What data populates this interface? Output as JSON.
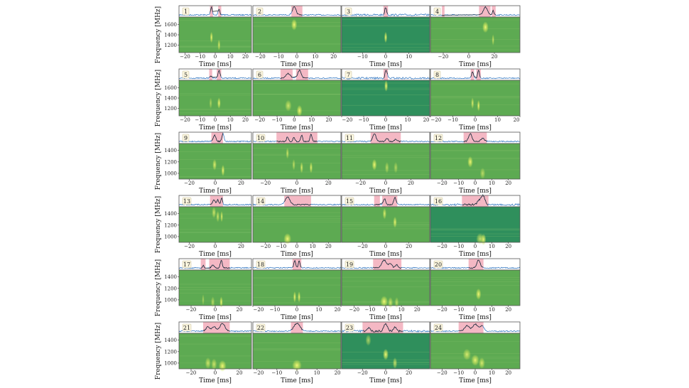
{
  "chart_data": {
    "type": "heatmap",
    "layout": {
      "rows": 6,
      "cols": 4
    },
    "xlabel": "Time [ms]",
    "ylabel": "Frequency [MHz]",
    "colors": {
      "shade": "#f4b8c4",
      "profile_line": "#3a7cc4",
      "burst_profile": "#222222",
      "spectrum_bg": "#5daa52",
      "spectrum_bg_dark": "#2f8f5c",
      "burst": "#d9ea5e"
    },
    "row_yticks": [
      [
        1200,
        1400,
        1600
      ],
      [
        1200,
        1400,
        1600
      ],
      [
        1000,
        1200,
        1400
      ],
      [
        1000,
        1200,
        1400
      ],
      [
        1000,
        1200,
        1400
      ],
      [
        1000,
        1200,
        1400
      ]
    ],
    "row_ylim": [
      [
        1050,
        1750
      ],
      [
        1050,
        1750
      ],
      [
        900,
        1520
      ],
      [
        900,
        1520
      ],
      [
        900,
        1520
      ],
      [
        900,
        1520
      ]
    ],
    "panels": [
      {
        "label": "1",
        "xlim": [
          -24,
          24
        ],
        "xticks": [
          -20,
          -10,
          0,
          10,
          20
        ],
        "shade": [
          [
            -3.5,
            -1.5
          ],
          [
            2,
            4
          ]
        ],
        "bursts": [
          [
            -2.5,
            1,
            0.6,
            1350
          ],
          [
            2.5,
            0.7,
            0.6,
            1200
          ]
        ],
        "dark": false
      },
      {
        "label": "2",
        "xlim": [
          -24,
          24
        ],
        "xticks": [
          -20,
          -10,
          0,
          10,
          20
        ],
        "shade": [
          [
            -3,
            3
          ]
        ],
        "bursts": [
          [
            -1.5,
            1,
            1,
            1600
          ]
        ],
        "dark": false
      },
      {
        "label": "3",
        "xlim": [
          -19,
          19
        ],
        "xticks": [
          -10,
          0,
          10
        ],
        "shade": [
          [
            -1,
            1
          ]
        ],
        "bursts": [
          [
            0,
            1,
            0.4,
            1350
          ]
        ],
        "dark": true
      },
      {
        "label": "4",
        "xlim": [
          -30,
          40
        ],
        "xticks": [
          -20,
          0,
          20
        ],
        "shade": [
          [
            -21,
            -19
          ],
          [
            8,
            17
          ],
          [
            18,
            21
          ]
        ],
        "bursts": [
          [
            13,
            1,
            1.5,
            1550
          ],
          [
            19,
            0.6,
            0.6,
            1300
          ]
        ],
        "dark": false
      },
      {
        "label": "5",
        "xlim": [
          -24,
          24
        ],
        "xticks": [
          -20,
          -10,
          0,
          10,
          20
        ],
        "shade": [
          [
            -4,
            -2
          ],
          [
            1,
            4
          ]
        ],
        "bursts": [
          [
            -3,
            0.3,
            0.6,
            1300
          ],
          [
            2.5,
            1,
            0.7,
            1300
          ]
        ],
        "dark": false
      },
      {
        "label": "6",
        "xlim": [
          -24,
          27
        ],
        "xticks": [
          -20,
          -10,
          0,
          10,
          20
        ],
        "shade": [
          [
            -8,
            -1
          ],
          [
            1,
            8
          ]
        ],
        "bursts": [
          [
            -3.5,
            0.6,
            1.2,
            1250
          ],
          [
            3,
            1,
            1,
            1150
          ]
        ],
        "dark": false
      },
      {
        "label": "7",
        "xlim": [
          -20,
          20
        ],
        "xticks": [
          -20,
          -10,
          0,
          10,
          20
        ],
        "shade": [
          [
            -1,
            1
          ]
        ],
        "bursts": [
          [
            0.2,
            1,
            0.5,
            1650
          ]
        ],
        "dark": true
      },
      {
        "label": "8",
        "xlim": [
          -20,
          20
        ],
        "xticks": [
          -20,
          -10,
          0,
          10,
          20
        ],
        "shade": [
          [
            -2,
            -0.5
          ],
          [
            0.5,
            2.5
          ]
        ],
        "bursts": [
          [
            -1.2,
            0.8,
            0.4,
            1300
          ],
          [
            1.5,
            1,
            0.4,
            1250
          ]
        ],
        "dark": false
      },
      {
        "label": "9",
        "xlim": [
          -28,
          28
        ],
        "xticks": [
          -20,
          0,
          20
        ],
        "shade": [
          [
            -3,
            6
          ]
        ],
        "bursts": [
          [
            -0.5,
            0.8,
            1,
            1150
          ],
          [
            6,
            1,
            0.8,
            1050
          ]
        ],
        "dark": false
      },
      {
        "label": "10",
        "xlim": [
          -28,
          28
        ],
        "xticks": [
          -20,
          0,
          20
        ],
        "shade": [
          [
            -13,
            13
          ]
        ],
        "bursts": [
          [
            -6,
            0.6,
            0.6,
            1350
          ],
          [
            -2,
            0.5,
            0.6,
            1150
          ],
          [
            3,
            0.8,
            0.6,
            1100
          ],
          [
            9,
            0.9,
            0.6,
            1100
          ]
        ],
        "dark": false
      },
      {
        "label": "11",
        "xlim": [
          -35,
          35
        ],
        "xticks": [
          -20,
          0,
          20
        ],
        "shade": [
          [
            -12,
            12
          ]
        ],
        "bursts": [
          [
            -9,
            1,
            1.2,
            1150
          ],
          [
            1,
            0.4,
            1,
            1100
          ],
          [
            8,
            0.3,
            1,
            1100
          ]
        ],
        "dark": false
      },
      {
        "label": "12",
        "xlim": [
          -27,
          27
        ],
        "xticks": [
          -20,
          -10,
          0,
          10,
          20
        ],
        "shade": [
          [
            -7,
            7
          ]
        ],
        "bursts": [
          [
            -3,
            1,
            1,
            1200
          ],
          [
            4.5,
            0.4,
            1,
            1000
          ]
        ],
        "dark": false
      },
      {
        "label": "13",
        "xlim": [
          -28,
          28
        ],
        "xticks": [
          -20,
          0,
          20
        ],
        "shade": [
          [
            -4,
            6
          ]
        ],
        "bursts": [
          [
            -1,
            0.6,
            1,
            1420
          ],
          [
            2,
            0.6,
            0.8,
            1350
          ],
          [
            5,
            0.9,
            0.6,
            1350
          ]
        ],
        "dark": false
      },
      {
        "label": "14",
        "xlim": [
          -28,
          28
        ],
        "xticks": [
          -20,
          -10,
          0,
          10,
          20
        ],
        "shade": [
          [
            -8,
            9
          ]
        ],
        "bursts": [
          [
            -6,
            1,
            1.5,
            960
          ]
        ],
        "dark": false
      },
      {
        "label": "15",
        "xlim": [
          -38,
          38
        ],
        "xticks": [
          -20,
          0,
          20
        ],
        "shade": [
          [
            -10,
            -5
          ],
          [
            -3,
            10
          ]
        ],
        "bursts": [
          [
            -1,
            0.8,
            1,
            1400
          ],
          [
            8,
            0.9,
            1,
            1250
          ]
        ],
        "dark": false
      },
      {
        "label": "16",
        "xlim": [
          -27,
          27
        ],
        "xticks": [
          -20,
          -10,
          0,
          10,
          20
        ],
        "shade": [
          [
            -8,
            8
          ]
        ],
        "bursts": [
          [
            3,
            0.6,
            1.5,
            960
          ],
          [
            5,
            0.9,
            1,
            940
          ]
        ],
        "dark": true
      },
      {
        "label": "17",
        "xlim": [
          -30,
          30
        ],
        "xticks": [
          -20,
          0,
          20
        ],
        "shade": [
          [
            -12,
            -8
          ],
          [
            -5,
            12
          ]
        ],
        "bursts": [
          [
            -10,
            0.3,
            0.6,
            1000
          ],
          [
            -2,
            0.4,
            1,
            960
          ],
          [
            5,
            1,
            0.8,
            960
          ]
        ],
        "dark": false
      },
      {
        "label": "18",
        "xlim": [
          -20,
          20
        ],
        "xticks": [
          -20,
          -10,
          0,
          10,
          20
        ],
        "shade": [
          [
            -2,
            2
          ]
        ],
        "bursts": [
          [
            -1,
            1,
            0.4,
            1050
          ],
          [
            1,
            0.9,
            0.4,
            1050
          ]
        ],
        "dark": false
      },
      {
        "label": "19",
        "xlim": [
          -28,
          28
        ],
        "xticks": [
          -20,
          -10,
          0,
          10,
          20
        ],
        "shade": [
          [
            -8,
            10
          ]
        ],
        "bursts": [
          [
            -1,
            1,
            1.5,
            970
          ],
          [
            3,
            0.6,
            1,
            950
          ],
          [
            7,
            0.4,
            0.8,
            950
          ]
        ],
        "dark": false
      },
      {
        "label": "20",
        "xlim": [
          -27,
          27
        ],
        "xticks": [
          -20,
          -10,
          0,
          10,
          20
        ],
        "shade": [
          [
            -4,
            5
          ]
        ],
        "bursts": [
          [
            2,
            1,
            1,
            1100
          ]
        ],
        "dark": false
      },
      {
        "label": "21",
        "xlim": [
          -30,
          30
        ],
        "xticks": [
          -20,
          0,
          20
        ],
        "shade": [
          [
            -10,
            12
          ]
        ],
        "bursts": [
          [
            -6,
            0.6,
            1.5,
            1000
          ],
          [
            -1,
            0.6,
            1.5,
            980
          ],
          [
            6,
            1,
            2,
            950
          ]
        ],
        "dark": false
      },
      {
        "label": "22",
        "xlim": [
          -22,
          22
        ],
        "xticks": [
          -20,
          -10,
          0,
          10,
          20
        ],
        "shade": [
          [
            -3,
            3
          ]
        ],
        "bursts": [
          [
            0,
            1,
            1.5,
            960
          ]
        ],
        "dark": false
      },
      {
        "label": "23",
        "xlim": [
          -38,
          38
        ],
        "xticks": [
          -20,
          0,
          20
        ],
        "shade": [
          [
            -20,
            15
          ]
        ],
        "bursts": [
          [
            -15,
            0.4,
            1.5,
            1400
          ],
          [
            0,
            1,
            1.5,
            1150
          ],
          [
            8,
            0.6,
            1.2,
            1000
          ]
        ],
        "dark": true
      },
      {
        "label": "24",
        "xlim": [
          -27,
          27
        ],
        "xticks": [
          -20,
          -10,
          0,
          10,
          20
        ],
        "shade": [
          [
            -10,
            5
          ]
        ],
        "bursts": [
          [
            -5,
            0.7,
            1.5,
            1150
          ],
          [
            0,
            0.9,
            1.5,
            1050
          ],
          [
            4,
            0.7,
            1.2,
            1000
          ]
        ],
        "dark": false
      }
    ]
  }
}
